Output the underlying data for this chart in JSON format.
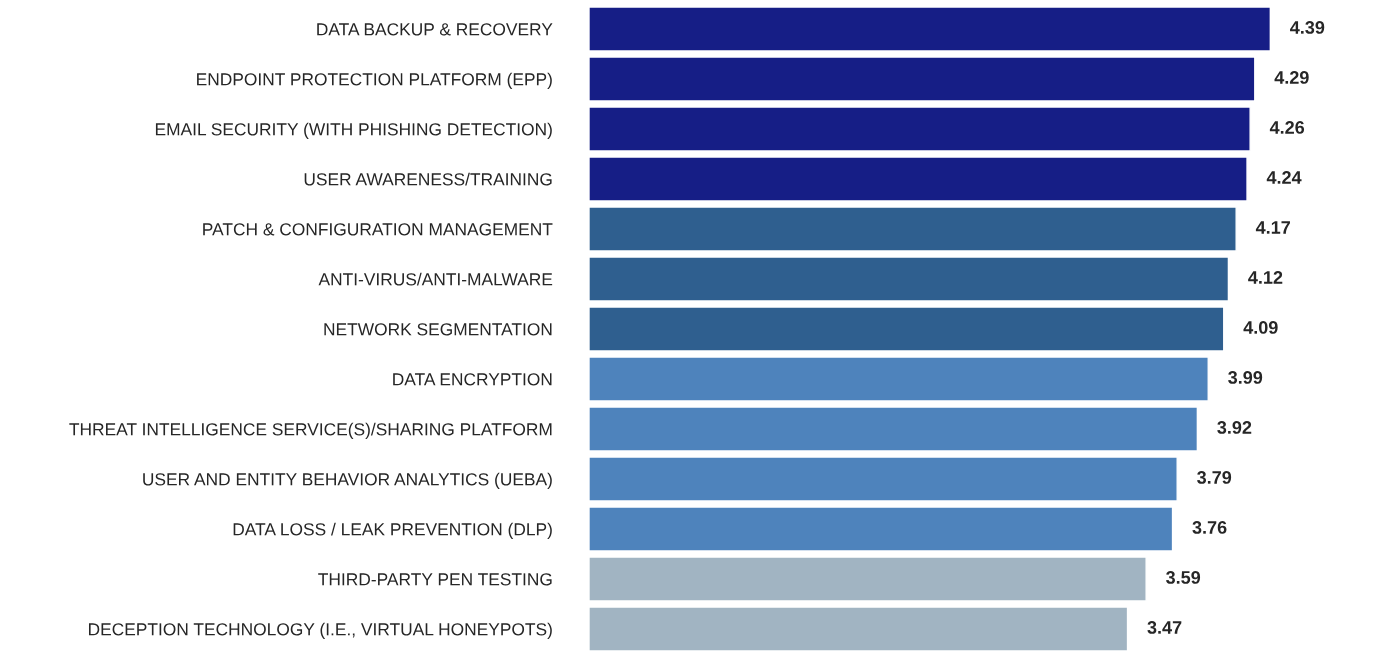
{
  "chart_data": {
    "type": "bar",
    "orientation": "horizontal",
    "data_labels": true,
    "grid": false,
    "legend": false,
    "categories": [
      "DATA BACKUP & RECOVERY",
      "ENDPOINT PROTECTION PLATFORM (EPP)",
      "EMAIL SECURITY (WITH PHISHING DETECTION)",
      "USER AWARENESS/TRAINING",
      "PATCH & CONFIGURATION MANAGEMENT",
      "ANTI-VIRUS/ANTI-MALWARE",
      "NETWORK SEGMENTATION",
      "DATA ENCRYPTION",
      "THREAT INTELLIGENCE SERVICE(S)/SHARING PLATFORM",
      "USER AND ENTITY BEHAVIOR ANALYTICS (UEBA)",
      "DATA LOSS / LEAK PREVENTION (DLP)",
      "THIRD-PARTY PEN TESTING",
      "DECEPTION TECHNOLOGY (I.E., VIRTUAL HONEYPOTS)"
    ],
    "values": [
      4.39,
      4.29,
      4.26,
      4.24,
      4.17,
      4.12,
      4.09,
      3.99,
      3.92,
      3.79,
      3.76,
      3.59,
      3.47
    ],
    "colors": [
      "#161e86",
      "#161e86",
      "#161e86",
      "#161e86",
      "#2f5f8f",
      "#2f5f8f",
      "#2f5f8f",
      "#4e83bc",
      "#4e83bc",
      "#4e83bc",
      "#4e83bc",
      "#a1b4c2",
      "#a1b4c2"
    ]
  }
}
